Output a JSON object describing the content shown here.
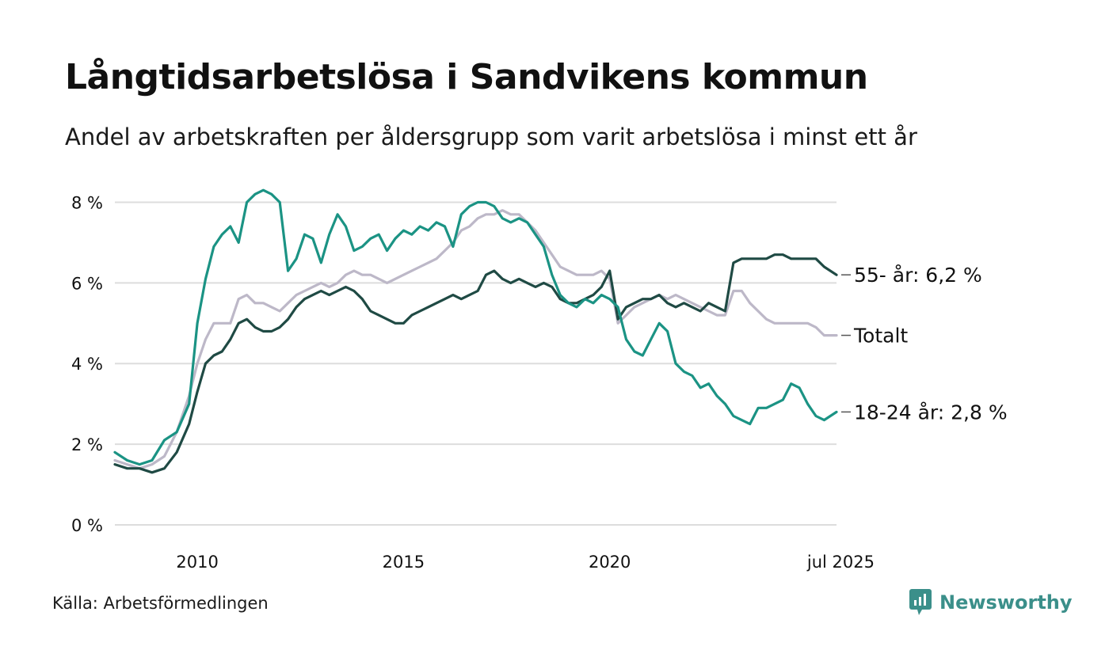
{
  "header": {
    "title": "Långtidsarbetslösa i Sandvikens kommun",
    "subtitle": "Andel av arbetskraften per åldersgrupp som varit arbetslösa i minst ett år"
  },
  "footer": {
    "source": "Källa: Arbetsförmedlingen",
    "brand": "Newsworthy"
  },
  "colors": {
    "grid": "#dddddd",
    "text": "#111111",
    "brand": "#3b8f8a"
  },
  "chart_data": {
    "type": "line",
    "title": "Långtidsarbetslösa i Sandvikens kommun",
    "subtitle": "Andel av arbetskraften per åldersgrupp som varit arbetslösa i minst ett år",
    "xlabel": "",
    "ylabel": "",
    "x_range": [
      2008.0,
      2025.5
    ],
    "ylim": [
      0,
      8.5
    ],
    "yticks": [
      0,
      2,
      4,
      6,
      8
    ],
    "ytick_labels": [
      "0 %",
      "2 %",
      "4 %",
      "6 %",
      "8 %"
    ],
    "xticks": [
      2010,
      2015,
      2020,
      2025.5
    ],
    "xtick_labels": [
      "2010",
      "2015",
      "2020",
      "jul 2025"
    ],
    "grid": true,
    "legend": "direct labels at right end of lines",
    "series": [
      {
        "key": "totalt",
        "name": "Totalt",
        "end_label": "Totalt",
        "color": "#bdb8c8",
        "x": [
          2008.0,
          2008.3,
          2008.6,
          2008.9,
          2009.2,
          2009.5,
          2009.8,
          2010.0,
          2010.2,
          2010.4,
          2010.6,
          2010.8,
          2011.0,
          2011.2,
          2011.4,
          2011.6,
          2011.8,
          2012.0,
          2012.2,
          2012.4,
          2012.6,
          2012.8,
          2013.0,
          2013.2,
          2013.4,
          2013.6,
          2013.8,
          2014.0,
          2014.2,
          2014.4,
          2014.6,
          2014.8,
          2015.0,
          2015.2,
          2015.4,
          2015.6,
          2015.8,
          2016.0,
          2016.2,
          2016.4,
          2016.6,
          2016.8,
          2017.0,
          2017.2,
          2017.4,
          2017.6,
          2017.8,
          2018.0,
          2018.2,
          2018.4,
          2018.6,
          2018.8,
          2019.0,
          2019.2,
          2019.4,
          2019.6,
          2019.8,
          2020.0,
          2020.2,
          2020.4,
          2020.6,
          2020.8,
          2021.0,
          2021.2,
          2021.4,
          2021.6,
          2021.8,
          2022.0,
          2022.2,
          2022.4,
          2022.6,
          2022.8,
          2023.0,
          2023.2,
          2023.4,
          2023.6,
          2023.8,
          2024.0,
          2024.2,
          2024.4,
          2024.6,
          2024.8,
          2025.0,
          2025.2,
          2025.5
        ],
        "values": [
          1.6,
          1.5,
          1.4,
          1.5,
          1.7,
          2.3,
          3.2,
          4.0,
          4.6,
          5.0,
          5.0,
          5.0,
          5.6,
          5.7,
          5.5,
          5.5,
          5.4,
          5.3,
          5.5,
          5.7,
          5.8,
          5.9,
          6.0,
          5.9,
          6.0,
          6.2,
          6.3,
          6.2,
          6.2,
          6.1,
          6.0,
          6.1,
          6.2,
          6.3,
          6.4,
          6.5,
          6.6,
          6.8,
          7.0,
          7.3,
          7.4,
          7.6,
          7.7,
          7.7,
          7.8,
          7.7,
          7.7,
          7.5,
          7.3,
          7.0,
          6.7,
          6.4,
          6.3,
          6.2,
          6.2,
          6.2,
          6.3,
          6.1,
          5.0,
          5.2,
          5.4,
          5.5,
          5.6,
          5.7,
          5.6,
          5.7,
          5.6,
          5.5,
          5.4,
          5.3,
          5.2,
          5.2,
          5.8,
          5.8,
          5.5,
          5.3,
          5.1,
          5.0,
          5.0,
          5.0,
          5.0,
          5.0,
          4.9,
          4.7,
          4.7
        ]
      },
      {
        "key": "s55",
        "name": "55- år",
        "end_label": "55- år: 6,2 %",
        "color": "#1f4a44",
        "x": [
          2008.0,
          2008.3,
          2008.6,
          2008.9,
          2009.2,
          2009.5,
          2009.8,
          2010.0,
          2010.2,
          2010.4,
          2010.6,
          2010.8,
          2011.0,
          2011.2,
          2011.4,
          2011.6,
          2011.8,
          2012.0,
          2012.2,
          2012.4,
          2012.6,
          2012.8,
          2013.0,
          2013.2,
          2013.4,
          2013.6,
          2013.8,
          2014.0,
          2014.2,
          2014.4,
          2014.6,
          2014.8,
          2015.0,
          2015.2,
          2015.4,
          2015.6,
          2015.8,
          2016.0,
          2016.2,
          2016.4,
          2016.6,
          2016.8,
          2017.0,
          2017.2,
          2017.4,
          2017.6,
          2017.8,
          2018.0,
          2018.2,
          2018.4,
          2018.6,
          2018.8,
          2019.0,
          2019.2,
          2019.4,
          2019.6,
          2019.8,
          2020.0,
          2020.2,
          2020.4,
          2020.6,
          2020.8,
          2021.0,
          2021.2,
          2021.4,
          2021.6,
          2021.8,
          2022.0,
          2022.2,
          2022.4,
          2022.6,
          2022.8,
          2023.0,
          2023.2,
          2023.4,
          2023.6,
          2023.8,
          2024.0,
          2024.2,
          2024.4,
          2024.6,
          2024.8,
          2025.0,
          2025.2,
          2025.5
        ],
        "values": [
          1.5,
          1.4,
          1.4,
          1.3,
          1.4,
          1.8,
          2.5,
          3.3,
          4.0,
          4.2,
          4.3,
          4.6,
          5.0,
          5.1,
          4.9,
          4.8,
          4.8,
          4.9,
          5.1,
          5.4,
          5.6,
          5.7,
          5.8,
          5.7,
          5.8,
          5.9,
          5.8,
          5.6,
          5.3,
          5.2,
          5.1,
          5.0,
          5.0,
          5.2,
          5.3,
          5.4,
          5.5,
          5.6,
          5.7,
          5.6,
          5.7,
          5.8,
          6.2,
          6.3,
          6.1,
          6.0,
          6.1,
          6.0,
          5.9,
          6.0,
          5.9,
          5.6,
          5.5,
          5.5,
          5.6,
          5.7,
          5.9,
          6.3,
          5.1,
          5.4,
          5.5,
          5.6,
          5.6,
          5.7,
          5.5,
          5.4,
          5.5,
          5.4,
          5.3,
          5.5,
          5.4,
          5.3,
          6.5,
          6.6,
          6.6,
          6.6,
          6.6,
          6.7,
          6.7,
          6.6,
          6.6,
          6.6,
          6.6,
          6.4,
          6.2
        ]
      },
      {
        "key": "s1824",
        "name": "18-24 år",
        "end_label": "18-24 år: 2,8 %",
        "color": "#1b9384",
        "x": [
          2008.0,
          2008.3,
          2008.6,
          2008.9,
          2009.2,
          2009.5,
          2009.8,
          2010.0,
          2010.2,
          2010.4,
          2010.6,
          2010.8,
          2011.0,
          2011.2,
          2011.4,
          2011.6,
          2011.8,
          2012.0,
          2012.2,
          2012.4,
          2012.6,
          2012.8,
          2013.0,
          2013.2,
          2013.4,
          2013.6,
          2013.8,
          2014.0,
          2014.2,
          2014.4,
          2014.6,
          2014.8,
          2015.0,
          2015.2,
          2015.4,
          2015.6,
          2015.8,
          2016.0,
          2016.2,
          2016.4,
          2016.6,
          2016.8,
          2017.0,
          2017.2,
          2017.4,
          2017.6,
          2017.8,
          2018.0,
          2018.2,
          2018.4,
          2018.6,
          2018.8,
          2019.0,
          2019.2,
          2019.4,
          2019.6,
          2019.8,
          2020.0,
          2020.2,
          2020.4,
          2020.6,
          2020.8,
          2021.0,
          2021.2,
          2021.4,
          2021.6,
          2021.8,
          2022.0,
          2022.2,
          2022.4,
          2022.6,
          2022.8,
          2023.0,
          2023.2,
          2023.4,
          2023.6,
          2023.8,
          2024.0,
          2024.2,
          2024.4,
          2024.6,
          2024.8,
          2025.0,
          2025.2,
          2025.5
        ],
        "values": [
          1.8,
          1.6,
          1.5,
          1.6,
          2.1,
          2.3,
          3.0,
          5.0,
          6.1,
          6.9,
          7.2,
          7.4,
          7.0,
          8.0,
          8.2,
          8.3,
          8.2,
          8.0,
          6.3,
          6.6,
          7.2,
          7.1,
          6.5,
          7.2,
          7.7,
          7.4,
          6.8,
          6.9,
          7.1,
          7.2,
          6.8,
          7.1,
          7.3,
          7.2,
          7.4,
          7.3,
          7.5,
          7.4,
          6.9,
          7.7,
          7.9,
          8.0,
          8.0,
          7.9,
          7.6,
          7.5,
          7.6,
          7.5,
          7.2,
          6.9,
          6.2,
          5.7,
          5.5,
          5.4,
          5.6,
          5.5,
          5.7,
          5.6,
          5.4,
          4.6,
          4.3,
          4.2,
          4.6,
          5.0,
          4.8,
          4.0,
          3.8,
          3.7,
          3.4,
          3.5,
          3.2,
          3.0,
          2.7,
          2.6,
          2.5,
          2.9,
          2.9,
          3.0,
          3.1,
          3.5,
          3.4,
          3.0,
          2.7,
          2.6,
          2.8
        ]
      }
    ]
  }
}
